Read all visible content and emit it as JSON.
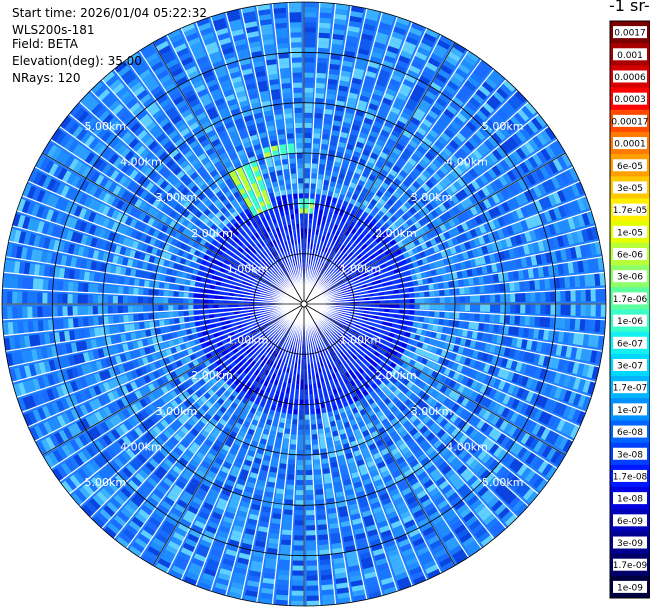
{
  "header": {
    "start_time": "Start time: 2026/01/04 05:22:32",
    "instrument": "WLS200s-181",
    "field": "Field: BETA",
    "elevation": "Elevation(deg): 35.00",
    "nrays": "NRays: 120"
  },
  "colorbar": {
    "unit_label": "-1 sr-",
    "labels": [
      "0.0017",
      "0.001",
      "0.0006",
      "0.0003",
      "0.00017",
      "0.0001",
      "6e-05",
      "3e-05",
      "1.7e-05",
      "1e-05",
      "6e-06",
      "3e-06",
      "1.7e-06",
      "1e-06",
      "6e-07",
      "3e-07",
      "1.7e-07",
      "1e-07",
      "6e-08",
      "3e-08",
      "1.7e-08",
      "1e-08",
      "6e-09",
      "3e-09",
      "1.7e-09",
      "1e-09"
    ],
    "colors": [
      "#7a0000",
      "#a80000",
      "#d40000",
      "#ff0000",
      "#ff4a00",
      "#ff7a00",
      "#ffa000",
      "#ffc800",
      "#fff000",
      "#e6ff00",
      "#b8ff3a",
      "#8cff6a",
      "#5cff9c",
      "#3affc8",
      "#14f0f0",
      "#00d8ff",
      "#00b4ff",
      "#0090ff",
      "#0064ff",
      "#0040ff",
      "#0018ff",
      "#0000e0",
      "#0000b8",
      "#000090",
      "#000068",
      "#000040"
    ]
  },
  "chart_data": {
    "type": "heatmap",
    "projection": "polar PPI",
    "nrays": 120,
    "range_rings_km": [
      1.0,
      2.0,
      3.0,
      4.0,
      5.0
    ],
    "ring_labels": [
      "1.00km",
      "2.00km",
      "3.00km",
      "4.00km",
      "5.00km"
    ],
    "max_range_km": 6.0,
    "background_level": "3e-08",
    "enhanced_regions": [
      {
        "azimuth_deg": 335,
        "range_km": [
          2.0,
          3.0
        ],
        "level": "1.7e-06"
      },
      {
        "azimuth_deg": 350,
        "range_km": [
          3.0,
          3.2
        ],
        "level": "1.7e-07"
      },
      {
        "azimuth_deg": 0,
        "range_km": [
          1.8,
          2.1
        ],
        "level": "1.7e-07"
      }
    ]
  }
}
